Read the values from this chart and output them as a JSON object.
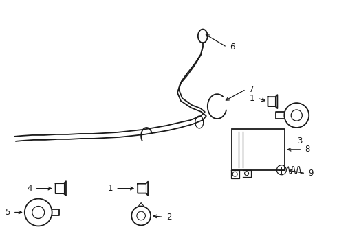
{
  "bg_color": "#ffffff",
  "line_color": "#1a1a1a",
  "fig_width": 4.9,
  "fig_height": 3.6,
  "dpi": 100,
  "wire_lw": 1.3,
  "label_fontsize": 8.5
}
